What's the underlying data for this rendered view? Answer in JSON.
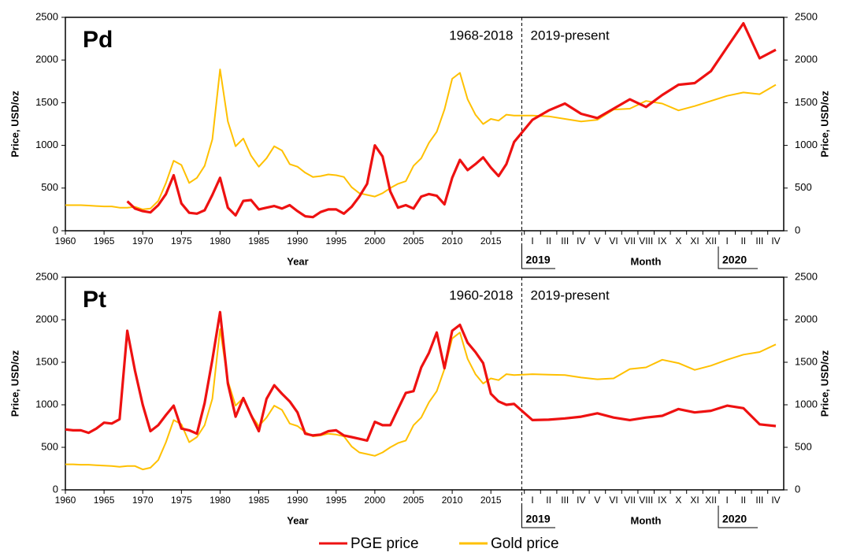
{
  "legend": [
    {
      "name": "PGE price",
      "color": "#ee1111"
    },
    {
      "name": "Gold price",
      "color": "#ffc000"
    }
  ],
  "chart_data": [
    {
      "type": "line",
      "title": "Pd",
      "annotations": [
        "1968-2018",
        "2019-present"
      ],
      "ylabel": "Price, USD/oz",
      "y2label": "Price, USD/oz",
      "xlabel": "Year",
      "month_label": "Month",
      "year_labels": [
        "2019",
        "2020"
      ],
      "x": [
        1960,
        1961,
        1962,
        1963,
        1964,
        1965,
        1966,
        1967,
        1968,
        1969,
        1970,
        1971,
        1972,
        1973,
        1974,
        1975,
        1976,
        1977,
        1978,
        1979,
        1980,
        1981,
        1982,
        1983,
        1984,
        1985,
        1986,
        1987,
        1988,
        1989,
        1990,
        1991,
        1992,
        1993,
        1994,
        1995,
        1996,
        1997,
        1998,
        1999,
        2000,
        2001,
        2002,
        2003,
        2004,
        2005,
        2006,
        2007,
        2008,
        2009,
        2010,
        2011,
        2012,
        2013,
        2014,
        2015,
        2016,
        2017,
        2018
      ],
      "xlim": [
        1960,
        2019
      ],
      "xticks": [
        1960,
        1965,
        1970,
        1975,
        1980,
        1985,
        1990,
        1995,
        2000,
        2005,
        2010,
        2015
      ],
      "months": [
        "I",
        "II",
        "III",
        "IV",
        "V",
        "VI",
        "VII",
        "VIII",
        "IX",
        "X",
        "XI",
        "XII",
        "I",
        "II",
        "III",
        "IV"
      ],
      "ylim": [
        0,
        2500
      ],
      "yticks": [
        0,
        500,
        1000,
        1500,
        2000,
        2500
      ],
      "y2lim": [
        0,
        2500
      ],
      "y2ticks": [
        0,
        500,
        1000,
        1500,
        2000,
        2500
      ],
      "series": [
        {
          "values": [
            null,
            null,
            null,
            null,
            null,
            null,
            null,
            null,
            345,
            260,
            230,
            215,
            300,
            430,
            650,
            320,
            210,
            200,
            240,
            420,
            620,
            270,
            180,
            350,
            360,
            250,
            270,
            290,
            260,
            300,
            230,
            170,
            160,
            220,
            250,
            250,
            200,
            280,
            400,
            550,
            1000,
            870,
            460,
            270,
            300,
            260,
            400,
            430,
            410,
            310,
            620,
            830,
            710,
            780,
            860,
            740,
            640,
            780,
            1040
          ],
          "month_values": [
            1300,
            1410,
            1490,
            1370,
            1320,
            1430,
            1540,
            1450,
            1590,
            1710,
            1730,
            1870,
            2150,
            2430,
            2020,
            2120
          ]
        },
        {
          "values": [
            300,
            300,
            300,
            295,
            290,
            285,
            285,
            270,
            270,
            280,
            250,
            260,
            350,
            560,
            820,
            770,
            560,
            620,
            760,
            1070,
            1890,
            1280,
            990,
            1080,
            880,
            750,
            850,
            990,
            940,
            780,
            750,
            680,
            630,
            640,
            660,
            650,
            630,
            510,
            440,
            420,
            400,
            440,
            500,
            550,
            580,
            760,
            850,
            1030,
            1160,
            1420,
            1780,
            1850,
            1540,
            1360,
            1250,
            1310,
            1290,
            1360,
            1350
          ],
          "month_values": [
            1350,
            1340,
            1310,
            1280,
            1300,
            1420,
            1430,
            1520,
            1490,
            1410,
            1460,
            1520,
            1580,
            1620,
            1600,
            1710
          ]
        }
      ]
    },
    {
      "type": "line",
      "title": "Pt",
      "annotations": [
        "1960-2018",
        "2019-present"
      ],
      "ylabel": "Price, USD/oz",
      "y2label": "Price, USD/oz",
      "xlabel": "Year",
      "month_label": "Month",
      "year_labels": [
        "2019",
        "2020"
      ],
      "x": [
        1960,
        1961,
        1962,
        1963,
        1964,
        1965,
        1966,
        1967,
        1968,
        1969,
        1970,
        1971,
        1972,
        1973,
        1974,
        1975,
        1976,
        1977,
        1978,
        1979,
        1980,
        1981,
        1982,
        1983,
        1984,
        1985,
        1986,
        1987,
        1988,
        1989,
        1990,
        1991,
        1992,
        1993,
        1994,
        1995,
        1996,
        1997,
        1998,
        1999,
        2000,
        2001,
        2002,
        2003,
        2004,
        2005,
        2006,
        2007,
        2008,
        2009,
        2010,
        2011,
        2012,
        2013,
        2014,
        2015,
        2016,
        2017,
        2018
      ],
      "xlim": [
        1960,
        2019
      ],
      "xticks": [
        1960,
        1965,
        1970,
        1975,
        1980,
        1985,
        1990,
        1995,
        2000,
        2005,
        2010,
        2015
      ],
      "months": [
        "I",
        "II",
        "III",
        "IV",
        "V",
        "VI",
        "VII",
        "VIII",
        "IX",
        "X",
        "XI",
        "XII",
        "I",
        "II",
        "III",
        "IV"
      ],
      "ylim": [
        0,
        2500
      ],
      "yticks": [
        0,
        500,
        1000,
        1500,
        2000,
        2500
      ],
      "y2lim": [
        0,
        2500
      ],
      "y2ticks": [
        0,
        500,
        1000,
        1500,
        2000,
        2500
      ],
      "series": [
        {
          "values": [
            710,
            700,
            700,
            670,
            720,
            790,
            780,
            830,
            1870,
            1400,
            1000,
            690,
            760,
            880,
            990,
            720,
            700,
            660,
            1020,
            1530,
            2090,
            1250,
            860,
            1080,
            880,
            690,
            1070,
            1230,
            1130,
            1040,
            910,
            660,
            640,
            650,
            690,
            700,
            640,
            620,
            600,
            580,
            800,
            760,
            760,
            950,
            1140,
            1160,
            1440,
            1610,
            1850,
            1430,
            1870,
            1940,
            1730,
            1620,
            1490,
            1130,
            1040,
            1000,
            1010
          ],
          "month_values": [
            820,
            825,
            840,
            860,
            900,
            850,
            820,
            850,
            870,
            950,
            910,
            930,
            990,
            960,
            770,
            750
          ]
        },
        {
          "values": [
            300,
            300,
            295,
            295,
            290,
            285,
            280,
            270,
            280,
            280,
            240,
            260,
            350,
            560,
            820,
            770,
            560,
            620,
            760,
            1070,
            1890,
            1280,
            990,
            1080,
            880,
            750,
            850,
            990,
            940,
            780,
            750,
            680,
            630,
            640,
            660,
            650,
            630,
            510,
            440,
            420,
            400,
            440,
            500,
            550,
            580,
            760,
            850,
            1030,
            1160,
            1420,
            1780,
            1850,
            1540,
            1360,
            1250,
            1310,
            1290,
            1360,
            1350
          ],
          "month_values": [
            1360,
            1355,
            1350,
            1320,
            1300,
            1310,
            1420,
            1440,
            1530,
            1490,
            1410,
            1460,
            1530,
            1590,
            1620,
            1710
          ]
        }
      ]
    }
  ]
}
